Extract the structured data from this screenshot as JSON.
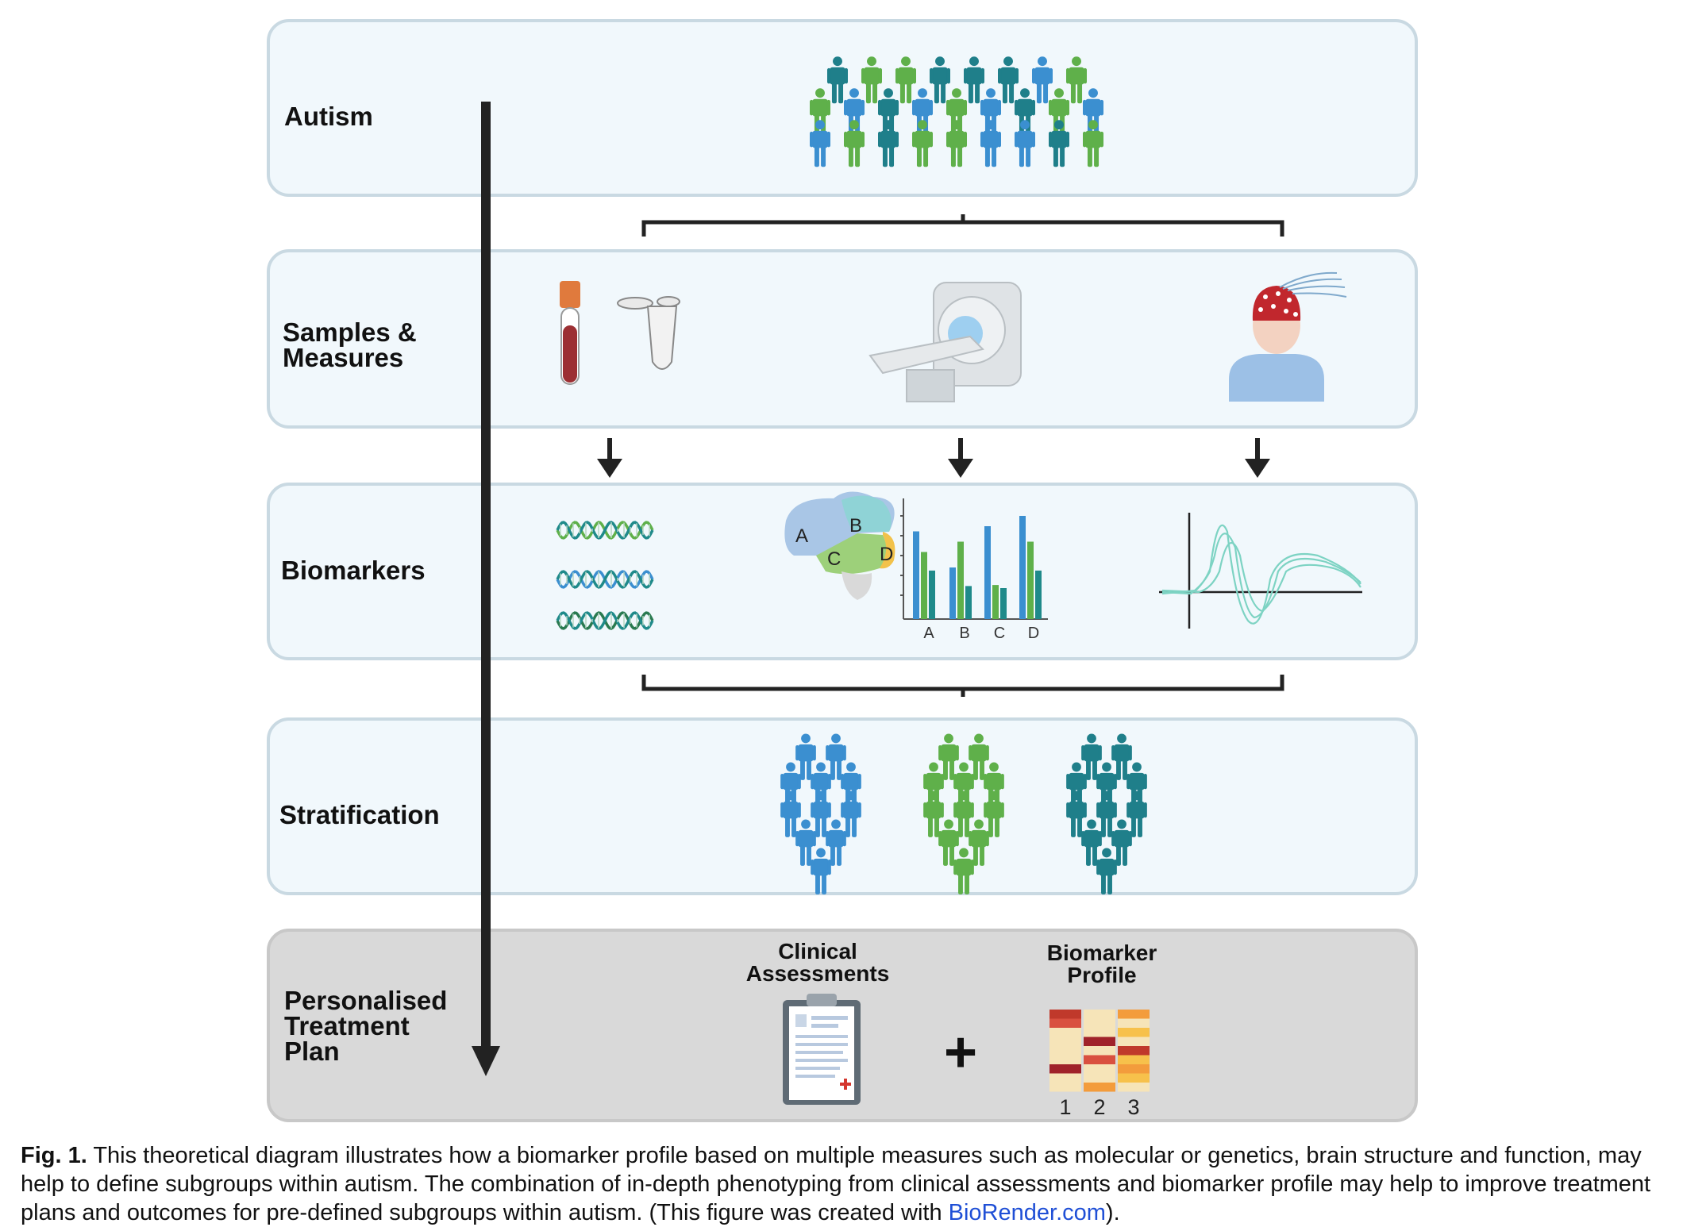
{
  "stages": [
    {
      "label_lines": [
        "Autism"
      ]
    },
    {
      "label_lines": [
        "Samples &",
        "Measures"
      ]
    },
    {
      "label_lines": [
        "Biomarkers"
      ]
    },
    {
      "label_lines": [
        "Stratification"
      ]
    },
    {
      "label_lines": [
        "Personalised",
        "Treatment",
        "Plan"
      ]
    }
  ],
  "brain_lobes": [
    "A",
    "B",
    "C",
    "D"
  ],
  "bar_chart": {
    "categories": [
      "A",
      "B",
      "C",
      "D"
    ],
    "series": [
      {
        "color": "#3b8fd0",
        "values": [
          0.85,
          0.5,
          0.9,
          1.0
        ]
      },
      {
        "color": "#5fb04a",
        "values": [
          0.65,
          0.75,
          0.33,
          0.75
        ]
      },
      {
        "color": "#1f8a8a",
        "values": [
          0.47,
          0.32,
          0.3,
          0.47
        ]
      }
    ]
  },
  "clinical_label_lines": [
    "Clinical",
    "Assessments"
  ],
  "plus_sign": "+",
  "profile_label_lines": [
    "Biomarker",
    "Profile"
  ],
  "profile_columns": [
    "1",
    "2",
    "3"
  ],
  "profile_grid": [
    [
      "#c0392b",
      "#f6e4b8",
      "#f39c3c"
    ],
    [
      "#d9503f",
      "#f6e4b8",
      "#f6e4b8"
    ],
    [
      "#f6e4b8",
      "#f6e4b8",
      "#f7c14b"
    ],
    [
      "#f6e4b8",
      "#a0222a",
      "#f6e4b8"
    ],
    [
      "#f6e4b8",
      "#f6e4b8",
      "#c0392b"
    ],
    [
      "#f6e4b8",
      "#d9503f",
      "#f7c14b"
    ],
    [
      "#a0222a",
      "#f6e4b8",
      "#f39c3c"
    ],
    [
      "#f6e4b8",
      "#f6e4b8",
      "#f7c14b"
    ],
    [
      "#f6e4b8",
      "#f39c3c",
      "#f6e4b8"
    ]
  ],
  "colors": {
    "blue": "#3b8fd0",
    "green": "#5fb04a",
    "teal": "#1f7f8a"
  },
  "caption": {
    "label": "Fig. 1.",
    "text": " This theoretical diagram illustrates how a biomarker profile based on multiple measures such as molecular or genetics, brain structure and function, may help to define subgroups within autism. The combination of in-depth phenotyping from clinical assessments and biomarker profile may help to improve treatment plans and outcomes for pre-defined subgroups within autism. (This figure was created with ",
    "link": "BioRender.com",
    "suffix": ")."
  }
}
